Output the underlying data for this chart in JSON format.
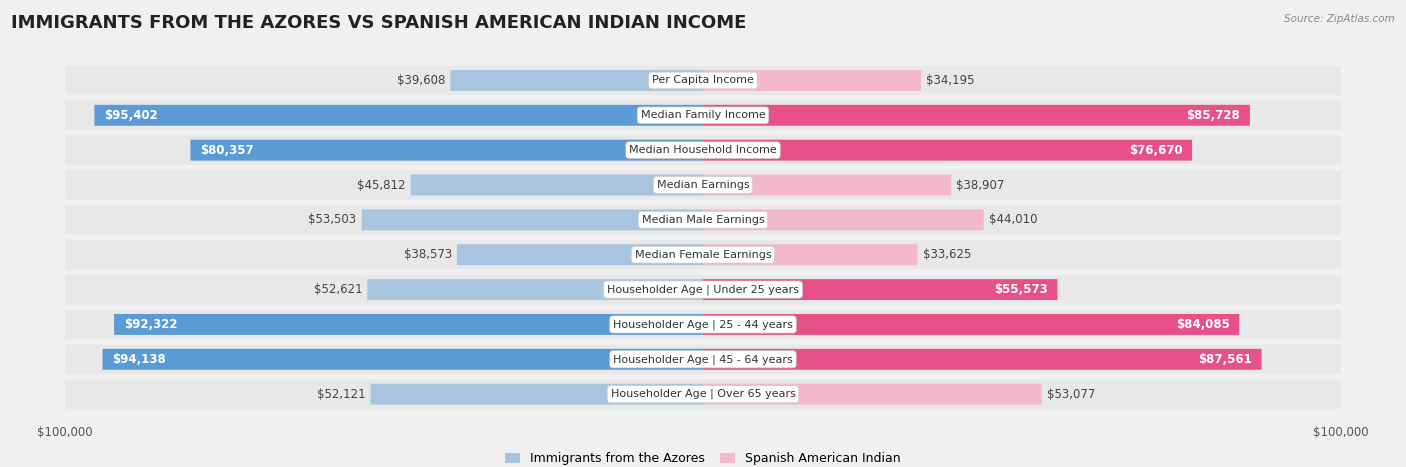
{
  "title": "IMMIGRANTS FROM THE AZORES VS SPANISH AMERICAN INDIAN INCOME",
  "source": "Source: ZipAtlas.com",
  "categories": [
    "Per Capita Income",
    "Median Family Income",
    "Median Household Income",
    "Median Earnings",
    "Median Male Earnings",
    "Median Female Earnings",
    "Householder Age | Under 25 years",
    "Householder Age | 25 - 44 years",
    "Householder Age | 45 - 64 years",
    "Householder Age | Over 65 years"
  ],
  "azores_values": [
    39608,
    95402,
    80357,
    45812,
    53503,
    38573,
    52621,
    92322,
    94138,
    52121
  ],
  "spanish_values": [
    34195,
    85728,
    76670,
    38907,
    44010,
    33625,
    55573,
    84085,
    87561,
    53077
  ],
  "azores_labels": [
    "$39,608",
    "$95,402",
    "$80,357",
    "$45,812",
    "$53,503",
    "$38,573",
    "$52,621",
    "$92,322",
    "$94,138",
    "$52,121"
  ],
  "spanish_labels": [
    "$34,195",
    "$85,728",
    "$76,670",
    "$38,907",
    "$44,010",
    "$33,625",
    "$55,573",
    "$84,085",
    "$87,561",
    "$53,077"
  ],
  "azores_color_light": "#a8c4e0",
  "azores_color_dark": "#5b9bd5",
  "spanish_color_light": "#f4b8cc",
  "spanish_color_dark": "#e8508a",
  "max_value": 100000,
  "row_bg_color": "#e8e8e8",
  "fig_bg_color": "#f0f0f0",
  "legend_azores": "Immigrants from the Azores",
  "legend_spanish": "Spanish American Indian",
  "title_fontsize": 13,
  "label_fontsize": 8.5,
  "category_fontsize": 8.0,
  "axis_label_fontsize": 8.5,
  "inside_label_threshold": 0.55
}
